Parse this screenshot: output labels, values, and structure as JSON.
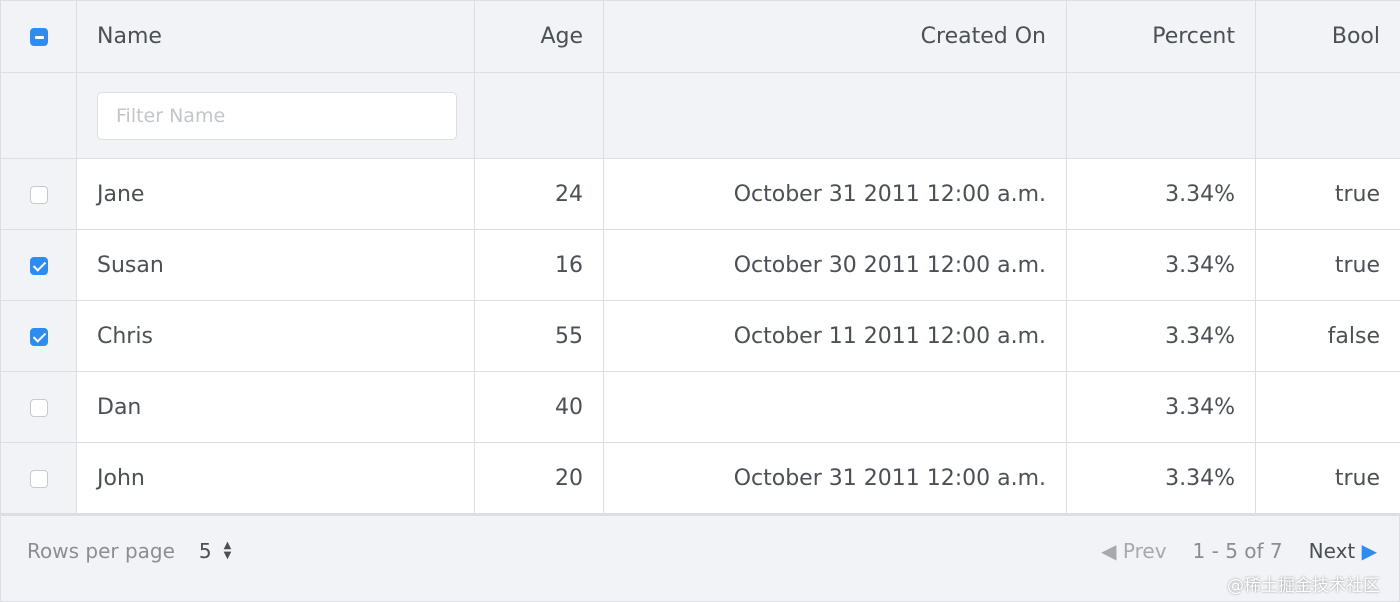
{
  "columns": [
    "Name",
    "Age",
    "Created On",
    "Percent",
    "Bool"
  ],
  "filter": {
    "placeholder": "Filter Name",
    "value": ""
  },
  "select_all": "indeterminate",
  "rows": [
    {
      "selected": false,
      "name": "Jane",
      "age": "24",
      "created": "October 31 2011 12:00 a.m.",
      "percent": "3.34%",
      "bool": "true"
    },
    {
      "selected": true,
      "name": "Susan",
      "age": "16",
      "created": "October 30 2011 12:00 a.m.",
      "percent": "3.34%",
      "bool": "true"
    },
    {
      "selected": true,
      "name": "Chris",
      "age": "55",
      "created": "October 11 2011 12:00 a.m.",
      "percent": "3.34%",
      "bool": "false"
    },
    {
      "selected": false,
      "name": "Dan",
      "age": "40",
      "created": "",
      "percent": "3.34%",
      "bool": ""
    },
    {
      "selected": false,
      "name": "John",
      "age": "20",
      "created": "October 31 2011 12:00 a.m.",
      "percent": "3.34%",
      "bool": "true"
    }
  ],
  "footer": {
    "rows_per_page_label": "Rows per page",
    "rows_per_page": "5",
    "prev": "Prev",
    "range": "1 - 5 of 7",
    "next": "Next"
  },
  "watermark": "@稀土掘金技术社区",
  "colors": {
    "accent": "#2d8cf0",
    "header_bg": "#f1f3f7"
  }
}
